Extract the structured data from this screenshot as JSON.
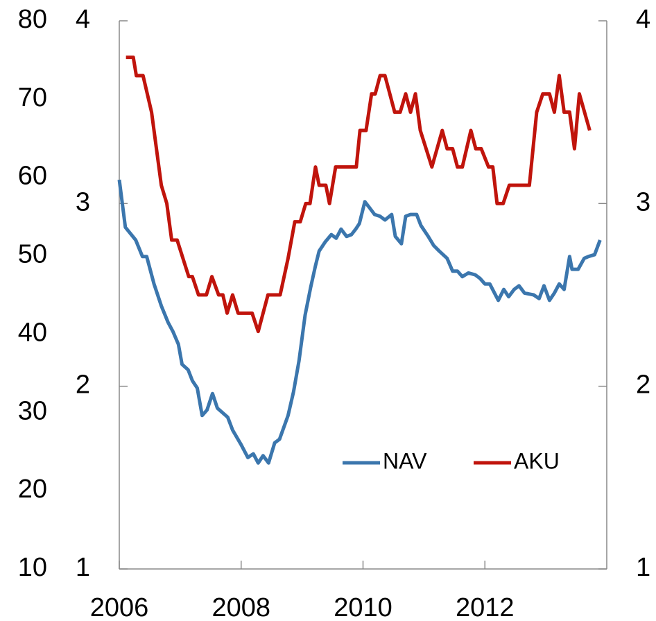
{
  "chart_data": {
    "type": "line",
    "xlim": [
      2006,
      2014
    ],
    "xticks": [
      2006,
      2008,
      2010,
      2012
    ],
    "ylim": [
      1,
      4
    ],
    "yticks": [
      1,
      2,
      3,
      4
    ],
    "y2lim": [
      10,
      80
    ],
    "y2ticks": [
      10,
      20,
      30,
      40,
      50,
      60,
      70,
      80
    ],
    "legend": "lower right",
    "series": [
      {
        "name": "NAV",
        "color": "#3b76ad",
        "x": [
          2006.0,
          2006.1,
          2006.27,
          2006.38,
          2006.45,
          2006.57,
          2006.69,
          2006.8,
          2006.88,
          2006.97,
          2007.03,
          2007.13,
          2007.2,
          2007.28,
          2007.36,
          2007.44,
          2007.53,
          2007.61,
          2007.78,
          2007.86,
          2008.0,
          2008.11,
          2008.2,
          2008.28,
          2008.36,
          2008.45,
          2008.55,
          2008.63,
          2008.77,
          2008.86,
          2008.95,
          2009.05,
          2009.14,
          2009.22,
          2009.28,
          2009.38,
          2009.48,
          2009.56,
          2009.64,
          2009.73,
          2009.81,
          2009.88,
          2009.94,
          2010.03,
          2010.1,
          2010.19,
          2010.28,
          2010.36,
          2010.47,
          2010.53,
          2010.63,
          2010.7,
          2010.78,
          2010.88,
          2010.95,
          2011.07,
          2011.16,
          2011.25,
          2011.38,
          2011.47,
          2011.55,
          2011.63,
          2011.73,
          2011.84,
          2011.92,
          2012.0,
          2012.08,
          2012.22,
          2012.31,
          2012.39,
          2012.48,
          2012.56,
          2012.65,
          2012.8,
          2012.89,
          2012.97,
          2013.06,
          2013.14,
          2013.22,
          2013.3,
          2013.39,
          2013.43,
          2013.53,
          2013.63,
          2013.7,
          2013.8,
          2013.89
        ],
        "values": [
          3.13,
          2.87,
          2.8,
          2.71,
          2.71,
          2.56,
          2.44,
          2.35,
          2.3,
          2.23,
          2.12,
          2.09,
          2.03,
          1.99,
          1.84,
          1.87,
          1.96,
          1.88,
          1.83,
          1.76,
          1.68,
          1.61,
          1.63,
          1.58,
          1.62,
          1.58,
          1.69,
          1.71,
          1.84,
          1.97,
          2.14,
          2.39,
          2.54,
          2.66,
          2.74,
          2.79,
          2.83,
          2.81,
          2.86,
          2.82,
          2.83,
          2.86,
          2.89,
          3.01,
          2.98,
          2.94,
          2.93,
          2.91,
          2.94,
          2.82,
          2.78,
          2.93,
          2.94,
          2.94,
          2.88,
          2.82,
          2.77,
          2.74,
          2.7,
          2.63,
          2.63,
          2.6,
          2.62,
          2.61,
          2.59,
          2.56,
          2.56,
          2.47,
          2.53,
          2.49,
          2.53,
          2.55,
          2.51,
          2.5,
          2.48,
          2.55,
          2.47,
          2.51,
          2.56,
          2.53,
          2.71,
          2.64,
          2.64,
          2.7,
          2.71,
          2.72,
          2.8
        ]
      },
      {
        "name": "AKU",
        "color": "#c0140c",
        "x": [
          2006.11,
          2006.23,
          2006.28,
          2006.39,
          2006.53,
          2006.69,
          2006.78,
          2006.86,
          2006.95,
          2007.14,
          2007.2,
          2007.3,
          2007.43,
          2007.52,
          2007.63,
          2007.7,
          2007.77,
          2007.86,
          2007.95,
          2008.18,
          2008.28,
          2008.44,
          2008.64,
          2008.77,
          2008.88,
          2008.97,
          2009.06,
          2009.13,
          2009.22,
          2009.28,
          2009.39,
          2009.45,
          2009.55,
          2009.89,
          2009.95,
          2010.05,
          2010.14,
          2010.2,
          2010.28,
          2010.36,
          2010.52,
          2010.61,
          2010.7,
          2010.78,
          2010.86,
          2010.94,
          2011.13,
          2011.3,
          2011.38,
          2011.47,
          2011.55,
          2011.63,
          2011.77,
          2011.85,
          2011.94,
          2012.06,
          2012.13,
          2012.2,
          2012.3,
          2012.4,
          2012.73,
          2012.85,
          2012.95,
          2013.06,
          2013.14,
          2013.22,
          2013.3,
          2013.39,
          2013.47,
          2013.55,
          2013.72
        ],
        "values": [
          3.8,
          3.8,
          3.7,
          3.7,
          3.5,
          3.1,
          3.0,
          2.8,
          2.8,
          2.6,
          2.6,
          2.5,
          2.5,
          2.6,
          2.5,
          2.5,
          2.4,
          2.5,
          2.4,
          2.4,
          2.3,
          2.5,
          2.5,
          2.7,
          2.9,
          2.9,
          3.0,
          3.0,
          3.2,
          3.1,
          3.1,
          3.0,
          3.2,
          3.2,
          3.4,
          3.4,
          3.6,
          3.6,
          3.7,
          3.7,
          3.5,
          3.5,
          3.6,
          3.5,
          3.6,
          3.4,
          3.2,
          3.4,
          3.3,
          3.3,
          3.2,
          3.2,
          3.4,
          3.3,
          3.3,
          3.2,
          3.2,
          3.0,
          3.0,
          3.1,
          3.1,
          3.5,
          3.6,
          3.6,
          3.5,
          3.7,
          3.5,
          3.5,
          3.3,
          3.6,
          3.4
        ]
      }
    ]
  }
}
